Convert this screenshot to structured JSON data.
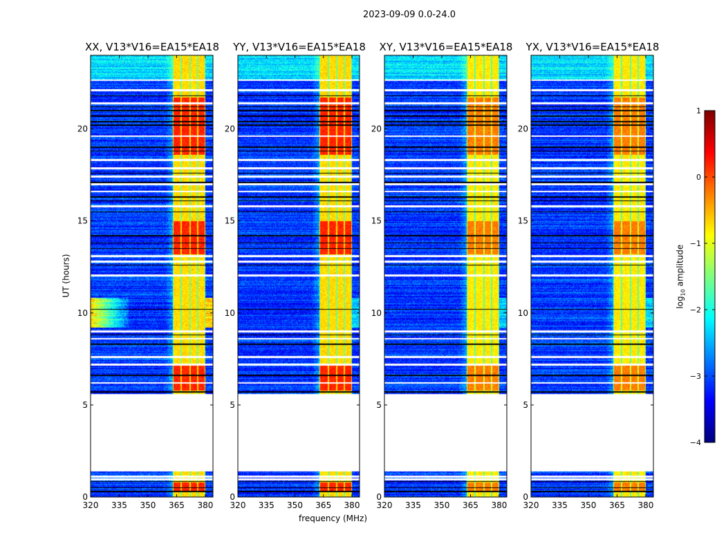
{
  "chart_data": {
    "type": "heatmap",
    "title": "2023-09-09 0.0-24.0",
    "xlabel": "frequency (MHz)",
    "ylabel": "UT (hours)",
    "xlim": [
      320,
      384
    ],
    "ylim": [
      0,
      24
    ],
    "xticks": [
      320,
      335,
      350,
      365,
      380
    ],
    "xtick_labels": [
      "320",
      "335",
      "350",
      "365",
      "380"
    ],
    "yticks": [
      0,
      5,
      10,
      15,
      20
    ],
    "ytick_labels": [
      "0",
      "5",
      "10",
      "15",
      "20"
    ],
    "panels": [
      {
        "title": "XX, V13*V16=EA15*EA18",
        "boost": 1.0,
        "rfi_left": true
      },
      {
        "title": "YY, V13*V16=EA15*EA18",
        "boost": 1.0,
        "rfi_left": false
      },
      {
        "title": "XY, V13*V16=EA15*EA18",
        "boost": 0.6,
        "rfi_left": false
      },
      {
        "title": "YX, V13*V16=EA15*EA18",
        "boost": 0.6,
        "rfi_left": false
      }
    ],
    "data_segments_hours": [
      [
        0.0,
        1.4
      ],
      [
        5.6,
        12.0
      ],
      [
        12.1,
        17.8
      ],
      [
        17.9,
        22.6
      ],
      [
        22.7,
        24.0
      ]
    ],
    "blank_rows_hours": [
      0.95,
      1.1,
      6.2,
      7.2,
      7.6,
      8.6,
      9.0,
      12.8,
      13.1,
      15.8,
      16.6,
      17.0,
      17.4,
      18.3,
      19.6,
      21.4,
      22.1
    ],
    "flag_rows_hours": [
      0.3,
      0.5,
      0.85,
      5.7,
      6.6,
      8.3,
      8.8,
      10.2,
      12.6,
      13.5,
      13.8,
      14.2,
      15.5,
      16.1,
      16.3,
      17.1,
      17.6,
      18.8,
      19.0,
      20.2,
      20.4,
      20.7,
      21.0,
      21.2,
      21.8
    ],
    "signal_band_mhz": [
      363,
      380
    ],
    "subband_edges_mhz": [
      363,
      367.5,
      372,
      376,
      380
    ],
    "bright_periods_hours": [
      [
        0.3,
        0.8
      ],
      [
        5.8,
        7.2
      ],
      [
        13.2,
        15.0
      ],
      [
        18.6,
        21.7
      ]
    ],
    "colorbar": {
      "label_main": "log",
      "label_sub": "10",
      "label_rest": " amplitude",
      "min": -4,
      "max": 1,
      "ticks": [
        1,
        0,
        -1,
        -2,
        -3,
        -4
      ],
      "tick_labels": [
        "1",
        "0",
        "−1",
        "−2",
        "−3",
        "−4"
      ]
    }
  }
}
